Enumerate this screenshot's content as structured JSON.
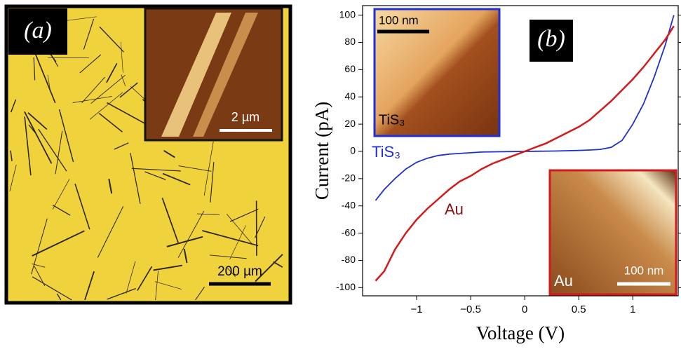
{
  "panel_a": {
    "label": "(a)",
    "inset_scale": "2 µm",
    "scale": "200 µm"
  },
  "chart_data": {
    "type": "line",
    "panel_label": "(b)",
    "xlabel": "Voltage (V)",
    "ylabel": "Current (pA)",
    "x": [
      -1.38,
      -1.3,
      -1.2,
      -1.1,
      -1.0,
      -0.9,
      -0.8,
      -0.7,
      -0.6,
      -0.5,
      -0.4,
      -0.3,
      -0.2,
      -0.1,
      0,
      0.1,
      0.2,
      0.3,
      0.4,
      0.5,
      0.6,
      0.7,
      0.8,
      0.9,
      1.0,
      1.1,
      1.2,
      1.3,
      1.38
    ],
    "series": [
      {
        "name": "TiS₃",
        "color": "#1f2fd0",
        "values": [
          -36,
          -28,
          -20,
          -13,
          -8,
          -5,
          -3,
          -2,
          -1.5,
          -1,
          -0.5,
          -0.3,
          -0.2,
          -0.1,
          0,
          0.1,
          0.2,
          0.3,
          0.5,
          0.7,
          1,
          1.5,
          3,
          8,
          20,
          35,
          55,
          78,
          100
        ]
      },
      {
        "name": "Au",
        "color": "#d41a1a",
        "values": [
          -95,
          -88,
          -72,
          -60,
          -50,
          -42,
          -35,
          -28,
          -22,
          -18,
          -13,
          -9,
          -6,
          -3,
          0,
          3,
          6,
          10,
          14,
          18,
          23,
          30,
          37,
          45,
          53,
          62,
          72,
          82,
          92
        ]
      }
    ],
    "xlim": [
      -1.5,
      1.42
    ],
    "ylim": [
      -106,
      107
    ],
    "xticks": [
      {
        "value": -1,
        "label": "−1"
      },
      {
        "value": -0.5,
        "label": "−0.5"
      },
      0,
      0.5,
      1
    ],
    "yticks": [
      -100,
      -80,
      -60,
      -40,
      -20,
      0,
      20,
      40,
      60,
      80,
      100
    ],
    "insets": [
      {
        "scale": "100 nm",
        "label": "TiS₃"
      },
      {
        "scale": "100 nm",
        "label": "Au"
      }
    ]
  }
}
